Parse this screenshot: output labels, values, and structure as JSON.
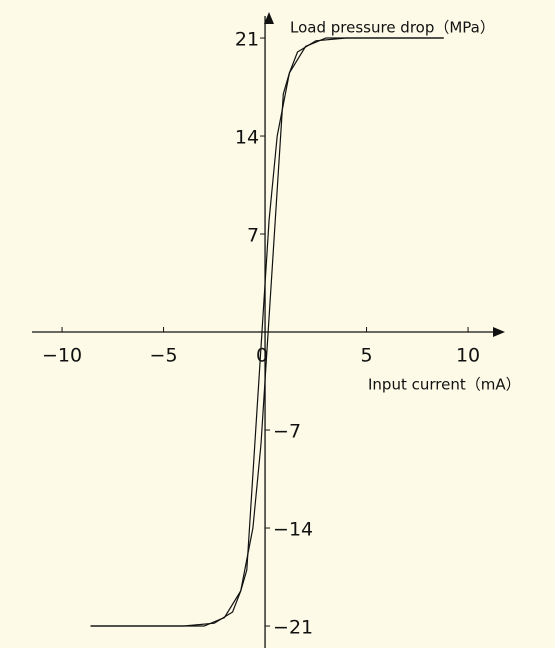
{
  "chart_data": {
    "type": "line",
    "x_label": "Input current（mA）",
    "y_label": "Load pressure drop（MPa）",
    "xlim": [
      -11.48,
      11.82
    ],
    "ylim": [
      -22.57,
      22.86
    ],
    "xticks": [
      {
        "value": -10,
        "label": "−10"
      },
      {
        "value": -5,
        "label": "−5"
      },
      0,
      5,
      10
    ],
    "yticks": [
      {
        "value": -21,
        "label": "−21"
      },
      {
        "value": -14,
        "label": "−14"
      },
      {
        "value": -7,
        "label": "−7"
      },
      7,
      14,
      21
    ],
    "series": [
      {
        "color": "#111111",
        "x": [
          -8.6,
          -4,
          -2.5,
          -1.6,
          -1.2,
          -0.9,
          0.2,
          0.6,
          1.2,
          2.0,
          3.0,
          8.8
        ],
        "values": [
          -21,
          -21,
          -20.8,
          -20,
          -18.5,
          -17,
          8,
          14,
          18.5,
          20.4,
          21,
          21
        ]
      },
      {
        "color": "#111111",
        "x": [
          8.8,
          4,
          2.5,
          1.6,
          1.2,
          0.9,
          -0.2,
          -0.6,
          -1.2,
          -2.0,
          -3.0,
          -8.6
        ],
        "values": [
          21,
          21,
          20.8,
          20,
          18.5,
          17,
          -8,
          -14,
          -18.5,
          -20.4,
          -21,
          -21
        ]
      }
    ]
  }
}
